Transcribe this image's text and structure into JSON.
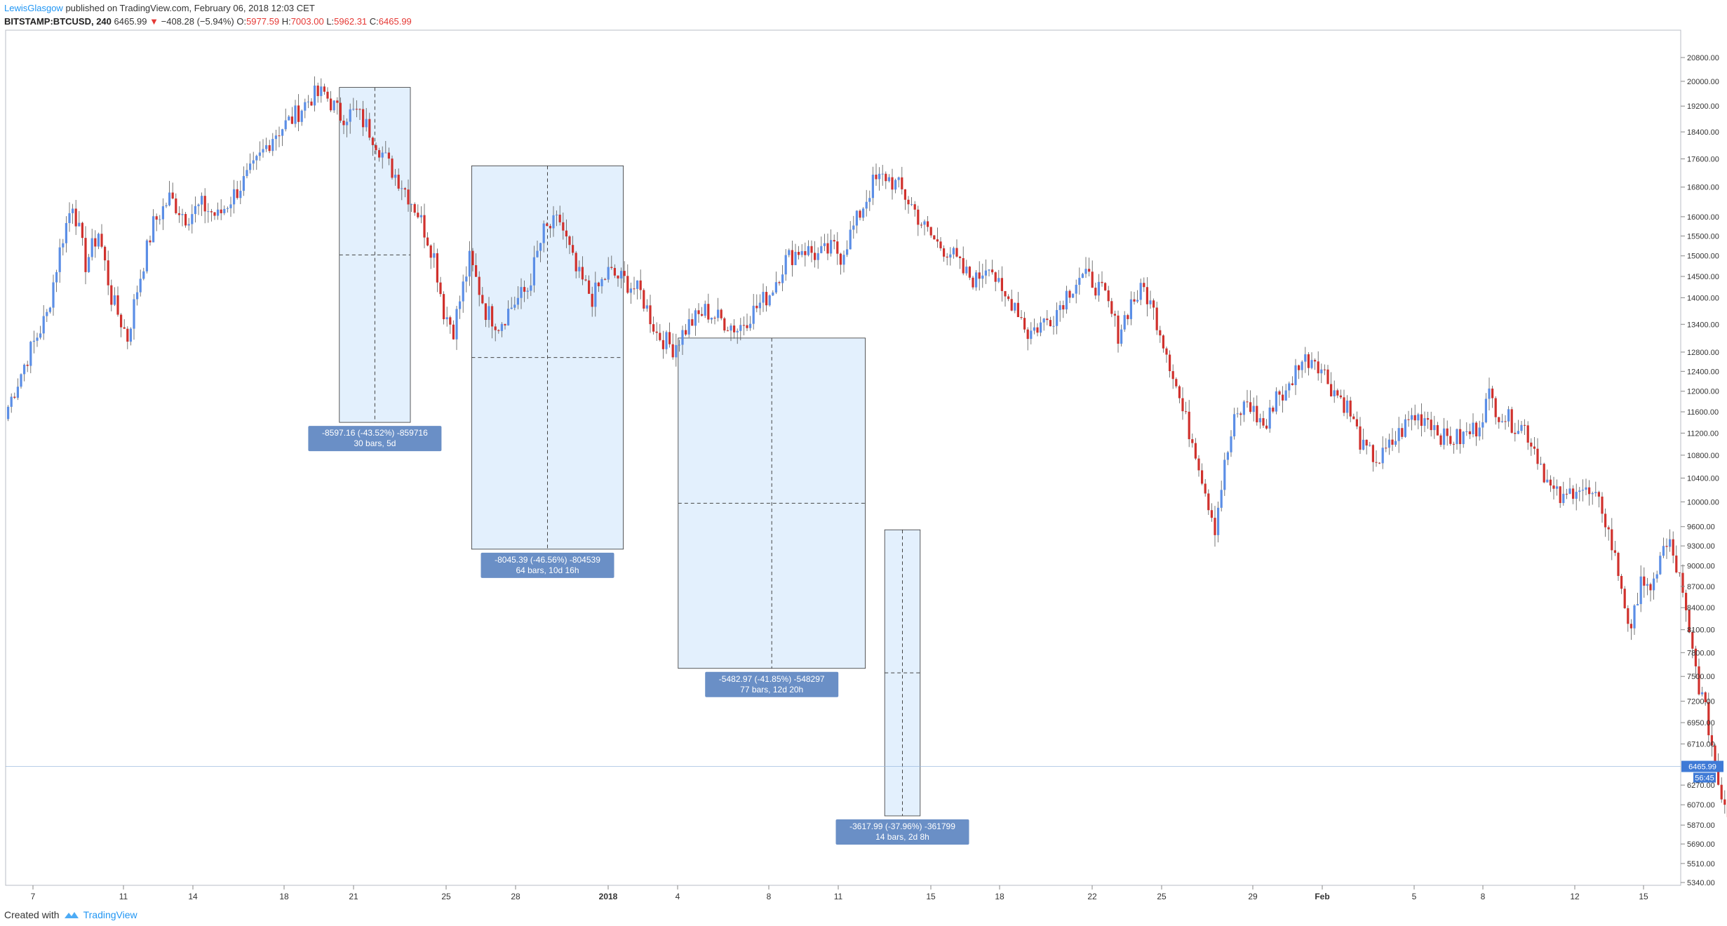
{
  "header": {
    "author": "LewisGlasgow",
    "published_text": "published on TradingView.com, February 06, 2018 12:03 CET",
    "symbol": "BITSTAMP:BTCUSD, 240",
    "last": "6465.99",
    "change": "−408.28 (−5.94%)",
    "ohlc_o_label": "O:",
    "ohlc_o": "5977.59",
    "ohlc_h_label": "H:",
    "ohlc_h": "7003.00",
    "ohlc_l_label": "L:",
    "ohlc_l": "5962.31",
    "ohlc_c_label": "C:",
    "ohlc_c": "6465.99"
  },
  "footer": {
    "created_with": "Created with",
    "brand": "TradingView"
  },
  "colors": {
    "up": "#5b8ee6",
    "down": "#d0312d",
    "box_fill": "#e3f0fd",
    "label_bg": "#6a8fc6",
    "grid": "#e9eef5"
  },
  "chart_data": {
    "type": "candlestick",
    "timeframe": "240",
    "y_scale": "log",
    "ylim": [
      5340,
      20800
    ],
    "y_ticks": [
      "20800.00",
      "20000.00",
      "19200.00",
      "18400.00",
      "17600.00",
      "16800.00",
      "16000.00",
      "15500.00",
      "15000.00",
      "14500.00",
      "14000.00",
      "13400.00",
      "12800.00",
      "12400.00",
      "12000.00",
      "11600.00",
      "11200.00",
      "10800.00",
      "10400.00",
      "10000.00",
      "9600.00",
      "9300.00",
      "9000.00",
      "8700.00",
      "8400.00",
      "8100.00",
      "7800.00",
      "7500.00",
      "7200.00",
      "6950.00",
      "6710.00",
      "6270.00",
      "6070.00",
      "5870.00",
      "5690.00",
      "5510.00",
      "5340.00"
    ],
    "x_ticks": [
      "7",
      "11",
      "14",
      "18",
      "21",
      "25",
      "28",
      "2018",
      "4",
      "8",
      "11",
      "15",
      "18",
      "22",
      "25",
      "29",
      "Feb",
      "5",
      "8",
      "12",
      "15"
    ],
    "last_price": "6465.99",
    "countdown": "56:45",
    "price_points": [
      [
        0,
        11700
      ],
      [
        6,
        12700
      ],
      [
        12,
        13600
      ],
      [
        17,
        15500
      ],
      [
        20,
        16400
      ],
      [
        24,
        14800
      ],
      [
        28,
        15600
      ],
      [
        32,
        14000
      ],
      [
        37,
        13100
      ],
      [
        40,
        14200
      ],
      [
        45,
        15800
      ],
      [
        50,
        16500
      ],
      [
        55,
        16000
      ],
      [
        60,
        16300
      ],
      [
        65,
        16000
      ],
      [
        70,
        16600
      ],
      [
        76,
        17300
      ],
      [
        82,
        18300
      ],
      [
        88,
        18800
      ],
      [
        94,
        19500
      ],
      [
        98,
        19600
      ],
      [
        103,
        18900
      ],
      [
        108,
        19000
      ],
      [
        113,
        18300
      ],
      [
        118,
        17400
      ],
      [
        122,
        16900
      ],
      [
        127,
        16100
      ],
      [
        132,
        15000
      ],
      [
        135,
        13700
      ],
      [
        138,
        13300
      ],
      [
        143,
        14900
      ],
      [
        148,
        13700
      ],
      [
        152,
        13400
      ],
      [
        157,
        13900
      ],
      [
        161,
        14200
      ],
      [
        166,
        15600
      ],
      [
        171,
        15900
      ],
      [
        176,
        14600
      ],
      [
        181,
        14000
      ],
      [
        186,
        14600
      ],
      [
        191,
        14400
      ],
      [
        196,
        14100
      ],
      [
        201,
        13200
      ],
      [
        206,
        12900
      ],
      [
        211,
        13400
      ],
      [
        216,
        13700
      ],
      [
        221,
        13500
      ],
      [
        226,
        13300
      ],
      [
        231,
        13700
      ],
      [
        236,
        14100
      ],
      [
        241,
        14900
      ],
      [
        246,
        15200
      ],
      [
        251,
        15000
      ],
      [
        256,
        15200
      ],
      [
        258,
        15000
      ],
      [
        263,
        15900
      ],
      [
        268,
        16900
      ],
      [
        272,
        17100
      ],
      [
        276,
        16800
      ],
      [
        280,
        16300
      ],
      [
        284,
        15700
      ],
      [
        288,
        15300
      ],
      [
        292,
        15100
      ],
      [
        296,
        14600
      ],
      [
        300,
        14400
      ],
      [
        304,
        14900
      ],
      [
        308,
        14000
      ],
      [
        312,
        13900
      ],
      [
        316,
        13200
      ],
      [
        320,
        13400
      ],
      [
        324,
        13600
      ],
      [
        328,
        14100
      ],
      [
        332,
        14500
      ],
      [
        336,
        14400
      ],
      [
        340,
        14000
      ],
      [
        344,
        13200
      ],
      [
        348,
        13900
      ],
      [
        352,
        14200
      ],
      [
        356,
        13500
      ],
      [
        360,
        12600
      ],
      [
        364,
        11600
      ],
      [
        368,
        10900
      ],
      [
        371,
        10200
      ],
      [
        374,
        9600
      ],
      [
        377,
        10600
      ],
      [
        380,
        11400
      ],
      [
        384,
        11800
      ],
      [
        387,
        11500
      ],
      [
        390,
        11300
      ],
      [
        393,
        12000
      ],
      [
        396,
        11900
      ],
      [
        400,
        12600
      ],
      [
        405,
        12700
      ],
      [
        410,
        12100
      ],
      [
        415,
        11700
      ],
      [
        420,
        10900
      ],
      [
        425,
        10700
      ],
      [
        430,
        11100
      ],
      [
        435,
        11500
      ],
      [
        440,
        11500
      ],
      [
        445,
        11100
      ],
      [
        450,
        11100
      ],
      [
        455,
        11300
      ],
      [
        459,
        11900
      ],
      [
        462,
        11600
      ],
      [
        466,
        11400
      ],
      [
        470,
        11300
      ],
      [
        474,
        10800
      ],
      [
        478,
        10200
      ],
      [
        482,
        10000
      ],
      [
        486,
        10300
      ],
      [
        490,
        10100
      ],
      [
        494,
        9900
      ],
      [
        497,
        9300
      ],
      [
        500,
        8700
      ],
      [
        503,
        8000
      ],
      [
        506,
        8900
      ],
      [
        509,
        8500
      ],
      [
        512,
        9200
      ],
      [
        515,
        9300
      ],
      [
        518,
        8800
      ],
      [
        521,
        8000
      ],
      [
        524,
        7400
      ],
      [
        527,
        6900
      ],
      [
        530,
        6300
      ],
      [
        533,
        6000
      ],
      [
        535,
        6466
      ]
    ],
    "measurements": [
      {
        "text": "-8597.16 (-43.52%) -859716",
        "sub": "30 bars, 5d",
        "bars": 30,
        "change": -8597.16,
        "pct": -43.52
      },
      {
        "text": "-8045.39 (-46.56%) -804539",
        "sub": "64 bars, 10d 16h",
        "bars": 64,
        "change": -8045.39,
        "pct": -46.56
      },
      {
        "text": "-5482.97 (-41.85%) -548297",
        "sub": "77 bars, 12d 20h",
        "bars": 77,
        "change": -5482.97,
        "pct": -41.85
      },
      {
        "text": "-3617.99 (-37.96%) -361799",
        "sub": "14 bars, 2d 8h",
        "bars": 14,
        "change": -3617.99,
        "pct": -37.96
      }
    ]
  }
}
